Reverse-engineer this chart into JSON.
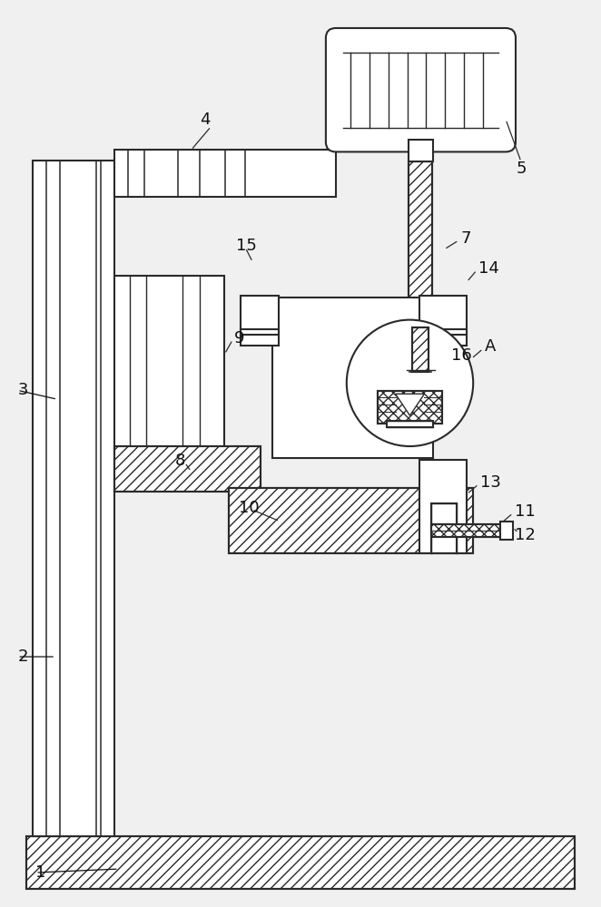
{
  "background_color": "#f0f0f0",
  "line_color": "#2a2a2a",
  "label_fontsize": 13,
  "label_color": "#111111",
  "fig_width": 6.62,
  "fig_height": 10.0,
  "dpi": 100
}
